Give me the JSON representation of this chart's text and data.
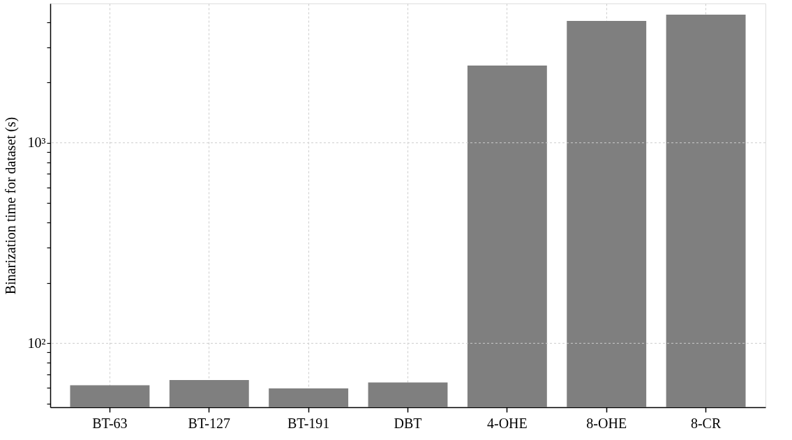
{
  "chart_data": {
    "type": "bar",
    "ylabel": "Binarization time for dataset (s)",
    "categories": [
      "BT-63",
      "BT-127",
      "BT-191",
      "DBT",
      "4-OHE",
      "8-OHE",
      "8-CR"
    ],
    "values": [
      61.8,
      65.6,
      59.6,
      63.8,
      2427,
      4053,
      4355
    ],
    "color": "#7f7f7f",
    "log": true,
    "ylim": [
      48,
      4950
    ],
    "yticks": [
      {
        "value": 50,
        "label": null
      },
      {
        "value": 60,
        "label": null
      },
      {
        "value": 70,
        "label": null
      },
      {
        "value": 80,
        "label": null
      },
      {
        "value": 90,
        "label": null
      },
      {
        "value": 100,
        "label": "10²"
      },
      {
        "value": 200,
        "label": null
      },
      {
        "value": 300,
        "label": null
      },
      {
        "value": 400,
        "label": null
      },
      {
        "value": 500,
        "label": null
      },
      {
        "value": 600,
        "label": null
      },
      {
        "value": 700,
        "label": null
      },
      {
        "value": 800,
        "label": null
      },
      {
        "value": 900,
        "label": null
      },
      {
        "value": 1000,
        "label": "10³"
      },
      {
        "value": 2000,
        "label": null
      },
      {
        "value": 3000,
        "label": null
      },
      {
        "value": 4000,
        "label": null
      }
    ],
    "grid": true
  }
}
